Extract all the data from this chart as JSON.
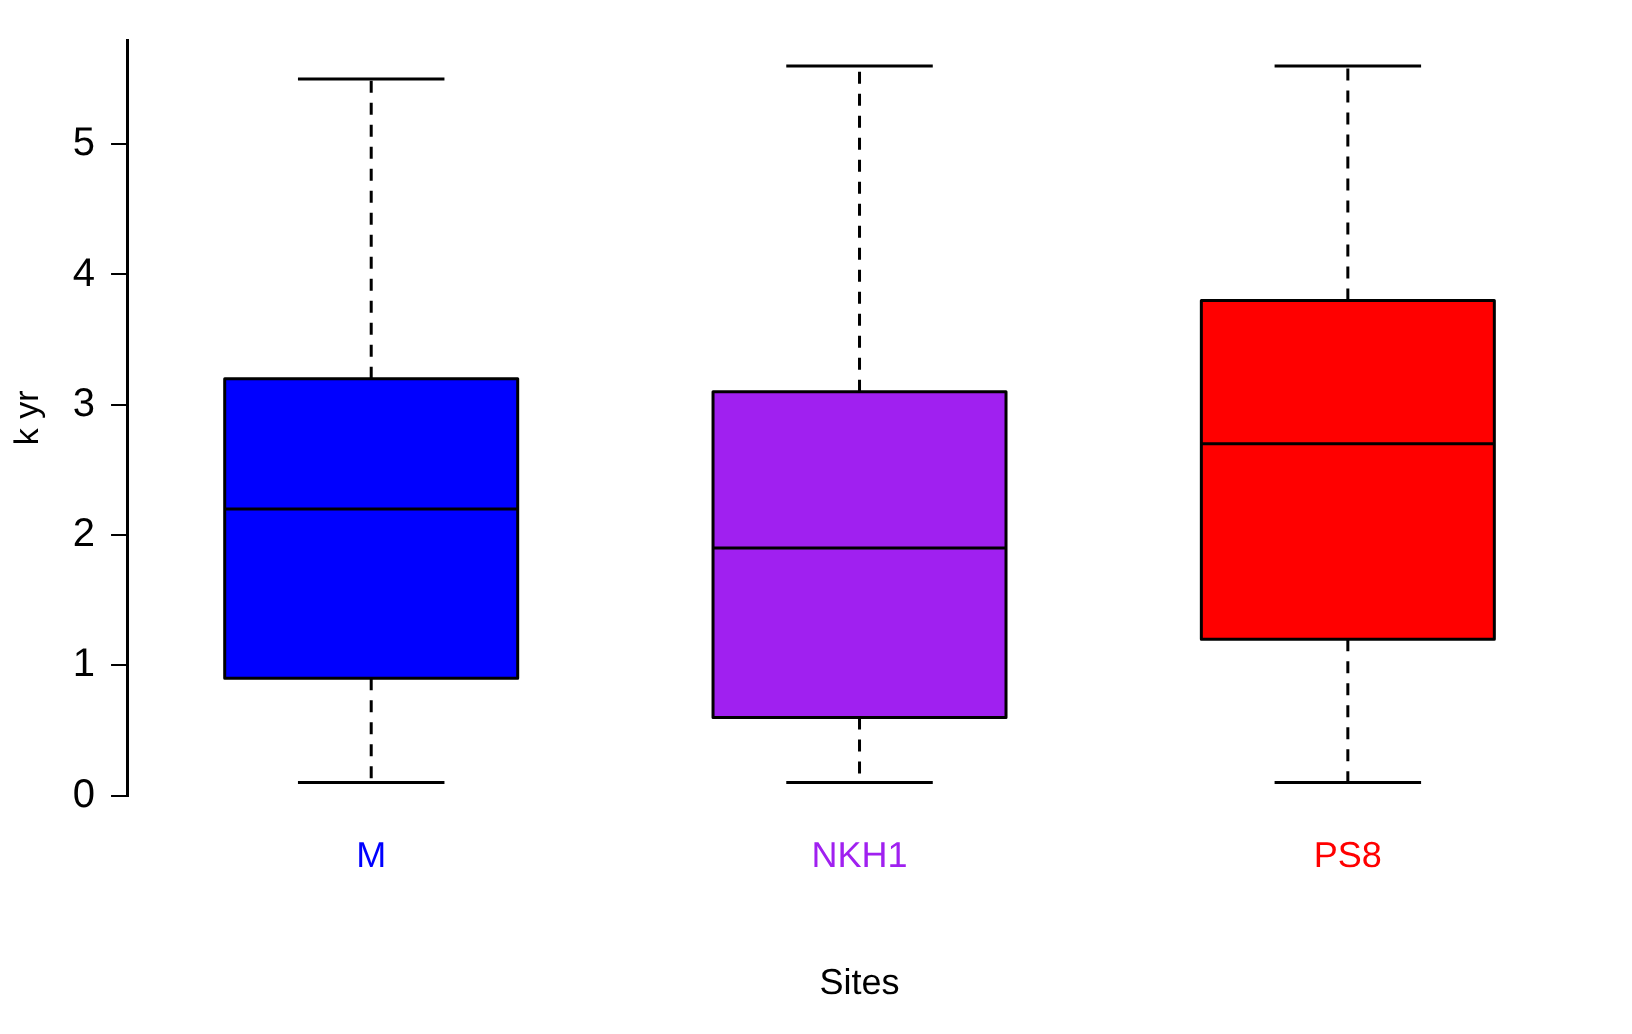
{
  "chart_data": {
    "type": "box",
    "xlabel": "Sites",
    "ylabel": "k yr",
    "categories": [
      "M",
      "NKH1",
      "PS8"
    ],
    "colors": [
      "#0000ff",
      "#a020f0",
      "#ff0000"
    ],
    "boxes": [
      {
        "low": 0.1,
        "q1": 0.9,
        "median": 2.2,
        "q3": 3.2,
        "high": 5.5
      },
      {
        "low": 0.1,
        "q1": 0.6,
        "median": 1.9,
        "q3": 3.1,
        "high": 5.6
      },
      {
        "low": 0.1,
        "q1": 1.2,
        "median": 2.7,
        "q3": 3.8,
        "high": 5.6
      }
    ],
    "ylim": [
      0,
      5.8
    ],
    "yticks": [
      0,
      1,
      2,
      3,
      4,
      5
    ],
    "grid": false,
    "legend": false,
    "line_style": "dashed"
  }
}
